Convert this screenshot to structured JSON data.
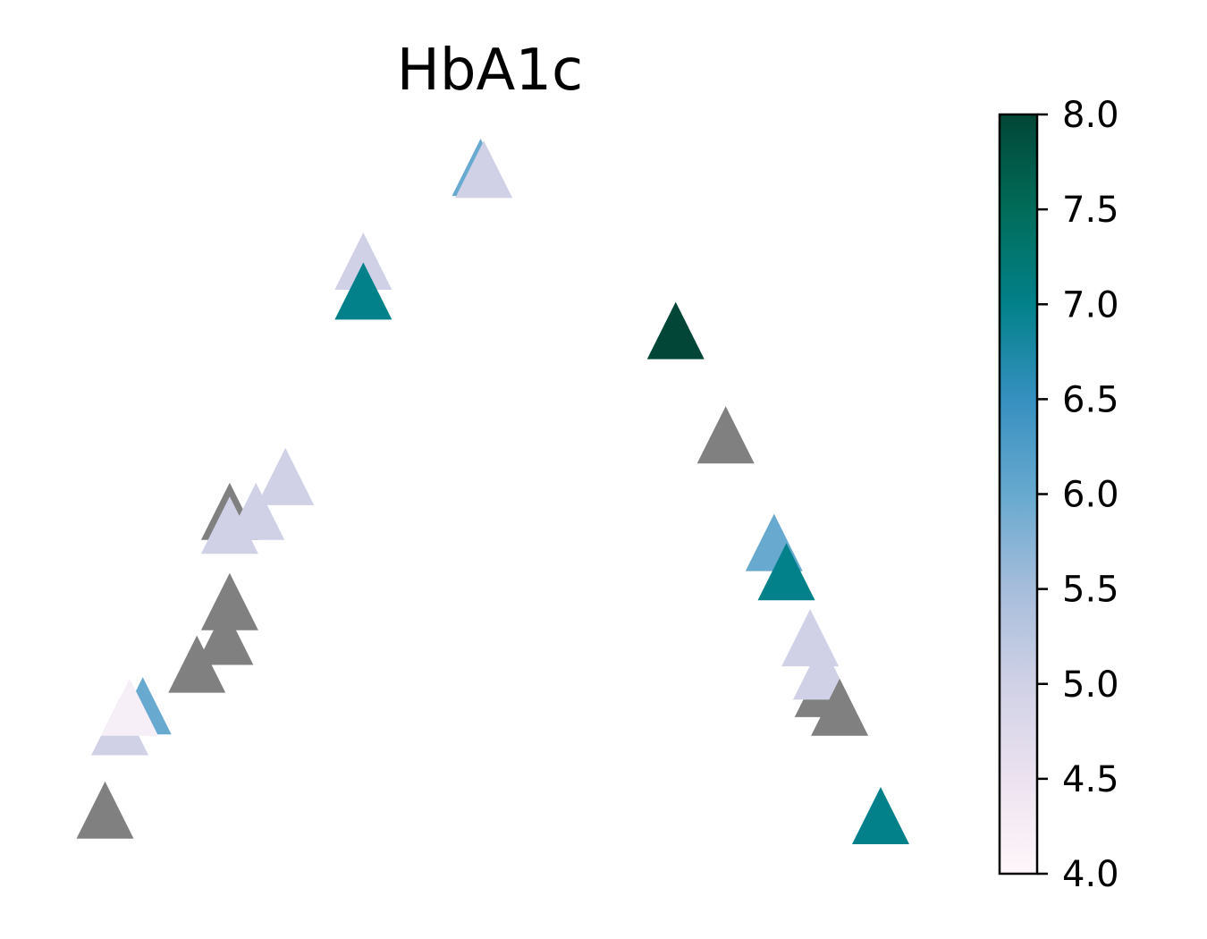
{
  "chart_data": {
    "type": "scatter",
    "title": "HbA1c",
    "marker": "triangle",
    "axes_visible": false,
    "grid": false,
    "xlim": [
      0,
      1
    ],
    "ylim": [
      0,
      1
    ],
    "missing_color": "#808080",
    "colorbar": {
      "cmap": "PuBuGn",
      "vmin": 4.0,
      "vmax": 8.0,
      "ticks": [
        "4.0",
        "4.5",
        "5.0",
        "5.5",
        "6.0",
        "6.5",
        "7.0",
        "7.5",
        "8.0"
      ],
      "stops": [
        "#fff7fb",
        "#ece2f0",
        "#d0d1e6",
        "#a6bddb",
        "#67a9cf",
        "#3690c0",
        "#02818a",
        "#016c59",
        "#014636"
      ]
    },
    "points": [
      {
        "x": 0.03,
        "y": 0.04,
        "value": null
      },
      {
        "x": 0.048,
        "y": 0.16,
        "value": 5.0
      },
      {
        "x": 0.076,
        "y": 0.19,
        "value": 6.0
      },
      {
        "x": 0.06,
        "y": 0.188,
        "value": 4.2
      },
      {
        "x": 0.142,
        "y": 0.25,
        "value": null
      },
      {
        "x": 0.176,
        "y": 0.29,
        "value": null
      },
      {
        "x": 0.182,
        "y": 0.34,
        "value": null
      },
      {
        "x": 0.182,
        "y": 0.47,
        "value": null
      },
      {
        "x": 0.214,
        "y": 0.47,
        "value": 5.0
      },
      {
        "x": 0.182,
        "y": 0.45,
        "value": 5.0
      },
      {
        "x": 0.25,
        "y": 0.52,
        "value": 5.0
      },
      {
        "x": 0.345,
        "y": 0.83,
        "value": 5.0
      },
      {
        "x": 0.345,
        "y": 0.787,
        "value": 7.0
      },
      {
        "x": 0.488,
        "y": 0.965,
        "value": 6.0
      },
      {
        "x": 0.492,
        "y": 0.962,
        "value": 5.0
      },
      {
        "x": 0.726,
        "y": 0.73,
        "value": 8.0
      },
      {
        "x": 0.787,
        "y": 0.58,
        "value": null
      },
      {
        "x": 0.846,
        "y": 0.425,
        "value": 6.0
      },
      {
        "x": 0.861,
        "y": 0.383,
        "value": 7.0
      },
      {
        "x": 0.89,
        "y": 0.288,
        "value": 5.0
      },
      {
        "x": 0.906,
        "y": 0.215,
        "value": null
      },
      {
        "x": 0.904,
        "y": 0.24,
        "value": 5.0
      },
      {
        "x": 0.926,
        "y": 0.188,
        "value": null
      },
      {
        "x": 0.976,
        "y": 0.032,
        "value": 7.0
      }
    ]
  }
}
